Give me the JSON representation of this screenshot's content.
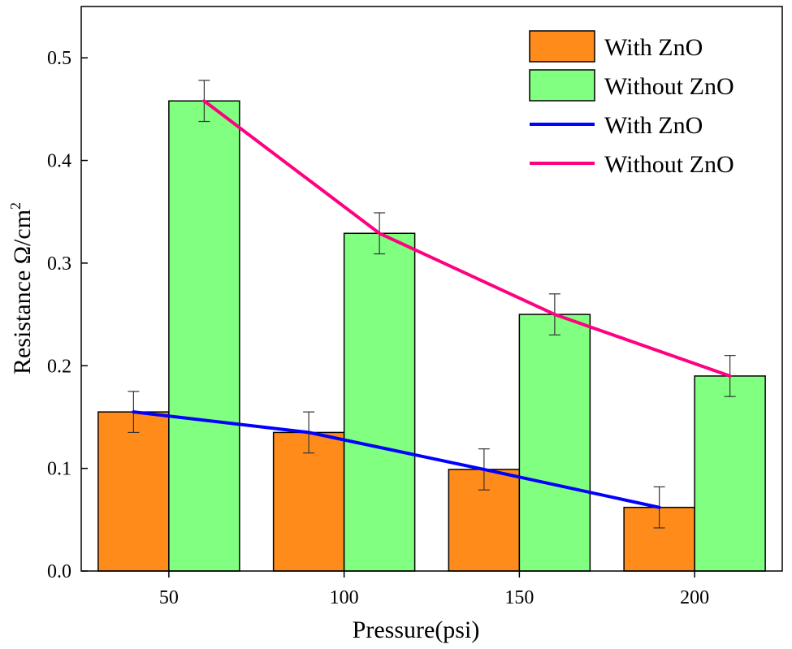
{
  "chart_data": {
    "type": "bar",
    "xlabel": "Pressure(psi)",
    "ylabel": "Resistance  Ω/cm",
    "ylabel_superscript": "2",
    "ylim": [
      0.0,
      0.55
    ],
    "yticks": [
      "0.0",
      "0.1",
      "0.2",
      "0.3",
      "0.4",
      "0.5"
    ],
    "ytick_values": [
      0.0,
      0.1,
      0.2,
      0.3,
      0.4,
      0.5
    ],
    "categories": [
      "50",
      "100",
      "150",
      "200"
    ],
    "series": [
      {
        "name": "With ZnO",
        "kind": "bar",
        "color": "#FF8C1A",
        "values": [
          0.155,
          0.135,
          0.099,
          0.062
        ],
        "errors": [
          0.02,
          0.02,
          0.02,
          0.02
        ]
      },
      {
        "name": "Without ZnO",
        "kind": "bar",
        "color": "#80FF80",
        "values": [
          0.458,
          0.329,
          0.25,
          0.19
        ],
        "errors": [
          0.02,
          0.02,
          0.02,
          0.02
        ]
      },
      {
        "name": "With ZnO",
        "kind": "line",
        "color": "#0000FF",
        "values": [
          0.155,
          0.135,
          0.099,
          0.062
        ]
      },
      {
        "name": "Without ZnO",
        "kind": "line",
        "color": "#FF0080",
        "values": [
          0.458,
          0.329,
          0.25,
          0.19
        ]
      }
    ],
    "legend_position": "top-right"
  }
}
